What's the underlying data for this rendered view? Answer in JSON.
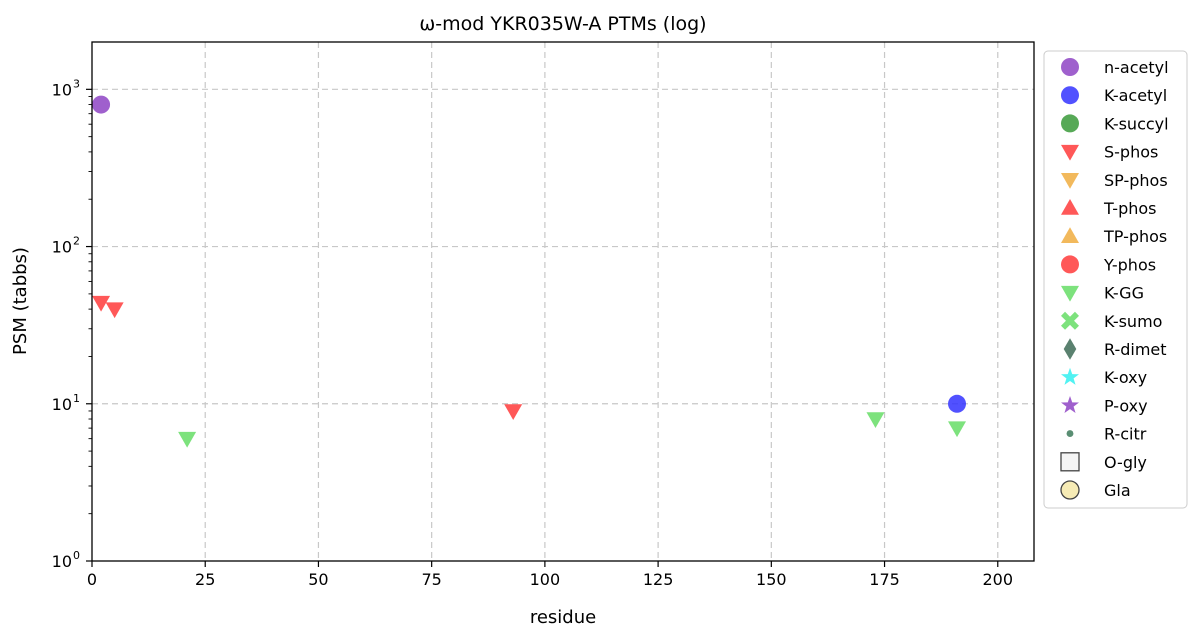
{
  "chart_data": {
    "type": "scatter",
    "title": "ω-mod YKR035W-A PTMs (log)",
    "xlabel": "residue",
    "ylabel": "PSM (tabbs)",
    "xlim": [
      0,
      208
    ],
    "ylim": [
      1,
      2000
    ],
    "yscale": "log",
    "grid": true,
    "legend_position": "right",
    "x_ticks": [
      0,
      25,
      50,
      75,
      100,
      125,
      150,
      175,
      200
    ],
    "x_tick_labels": [
      "0",
      "25",
      "50",
      "75",
      "100",
      "125",
      "150",
      "175",
      "200"
    ],
    "y_ticks": [
      1,
      10,
      100,
      1000
    ],
    "y_tick_labels": [
      {
        "base": "10",
        "exp": "0"
      },
      {
        "base": "10",
        "exp": "1"
      },
      {
        "base": "10",
        "exp": "2"
      },
      {
        "base": "10",
        "exp": "3"
      }
    ],
    "series": [
      {
        "name": "n-acetyl",
        "marker": "circle",
        "color": "#8e44c4",
        "points": [
          {
            "x": 2,
            "y": 800
          }
        ]
      },
      {
        "name": "K-acetyl",
        "marker": "circle",
        "color": "#3333ff",
        "points": [
          {
            "x": 191,
            "y": 10
          }
        ]
      },
      {
        "name": "K-succyl",
        "marker": "circle",
        "color": "#3a9a3a",
        "points": []
      },
      {
        "name": "S-phos",
        "marker": "triangle-down",
        "color": "#ff3b3b",
        "points": [
          {
            "x": 2,
            "y": 44
          },
          {
            "x": 5,
            "y": 40
          },
          {
            "x": 93,
            "y": 9
          }
        ]
      },
      {
        "name": "SP-phos",
        "marker": "triangle-down",
        "color": "#f0ad40",
        "points": []
      },
      {
        "name": "T-phos",
        "marker": "triangle-up",
        "color": "#ff3b3b",
        "points": []
      },
      {
        "name": "TP-phos",
        "marker": "triangle-up",
        "color": "#f0ad40",
        "points": []
      },
      {
        "name": "Y-phos",
        "marker": "circle",
        "color": "#ff3b3b",
        "points": []
      },
      {
        "name": "K-GG",
        "marker": "triangle-down",
        "color": "#66dd66",
        "points": [
          {
            "x": 21,
            "y": 6
          },
          {
            "x": 173,
            "y": 8
          },
          {
            "x": 191,
            "y": 7
          }
        ]
      },
      {
        "name": "K-sumo",
        "marker": "x",
        "color": "#66dd66",
        "points": []
      },
      {
        "name": "R-dimet",
        "marker": "diamond",
        "color": "#3d6b56",
        "points": []
      },
      {
        "name": "K-oxy",
        "marker": "star",
        "color": "#33f0f0",
        "points": []
      },
      {
        "name": "P-oxy",
        "marker": "star",
        "color": "#8e44c4",
        "points": []
      },
      {
        "name": "R-citr",
        "marker": "dot",
        "color": "#3d7a5a",
        "points": []
      },
      {
        "name": "O-gly",
        "marker": "square",
        "color": "#f2f2f2",
        "points": []
      },
      {
        "name": "Gla",
        "marker": "circle-hollow",
        "color": "#f5e7a8",
        "points": []
      }
    ]
  }
}
